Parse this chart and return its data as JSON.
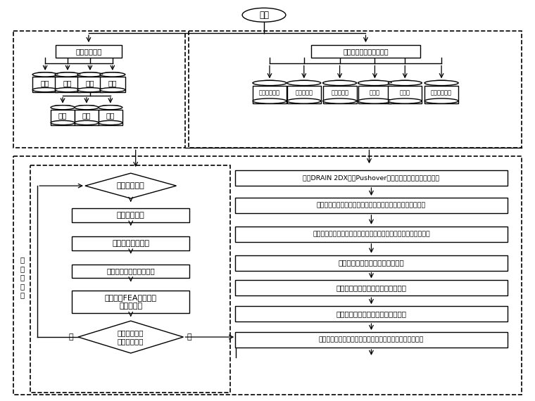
{
  "start_label": "开始",
  "left_box_label": "结构模型建立",
  "right_box_label": "定义多目标遗传传法参数",
  "cyl_row1": [
    "层数",
    "跨数",
    "荷载",
    "材料"
  ],
  "cyl_row2": [
    "恒载",
    "活载",
    "地震"
  ],
  "cyl_row3": [
    "目标函数数量",
    "设计变量数",
    "轮盘赌参数",
    "交叉率",
    "变异率",
    "产生初始种群"
  ],
  "diamond1": "针对初始种群",
  "rect_left": [
    "计算初始造价",
    "统计截面类型数量",
    "定义竖向及水平荷载作用",
    "运用弹性FEA计算结构\n内力及变形"
  ],
  "diamond2_line1": "检查是否满足",
  "diamond2_line2": "规范约束要求",
  "label_no": "否",
  "label_yes": "是",
  "side_label": "下\n一\n个\n个\n体",
  "rect_right": [
    "调用DRAIN 2DX进行Pushover分析确定结构最大层间位移角",
    "运用对数正态拟合小震与大震对应超越概率与最大层间位移角",
    "通过修正系数来考虑计算模型及地震荷载的随机性与不确定性影响",
    "计算对应于不同破坏状态的损失值",
    "计算对应于不同破坏状态的失效概率",
    "计算对应于不同破坏状态的损失期望",
    "给出初始造价、损失期望、截面类型数量值及相关性能指标"
  ]
}
